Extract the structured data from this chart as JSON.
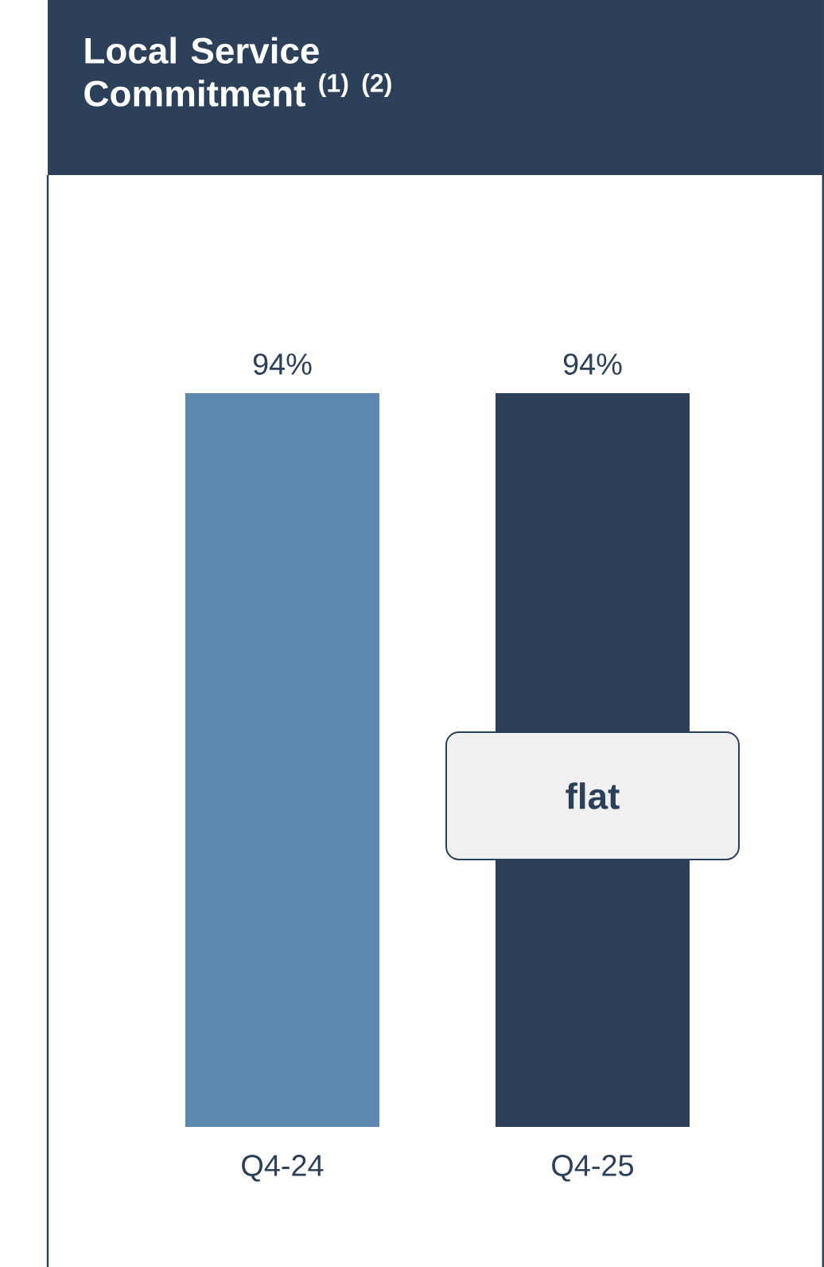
{
  "chart_data": {
    "type": "bar",
    "title": "Local Service Commitment $^{(1) (2)}$",
    "categories": [
      "Q4-24",
      "Q4-25"
    ],
    "values": [
      94,
      94
    ],
    "colors": [
      "#5b87b0",
      "#2c405a"
    ],
    "value_labels": [
      "94%",
      "94%"
    ],
    "tick_labels": "x",
    "annotations": [
      "flat"
    ]
  }
}
